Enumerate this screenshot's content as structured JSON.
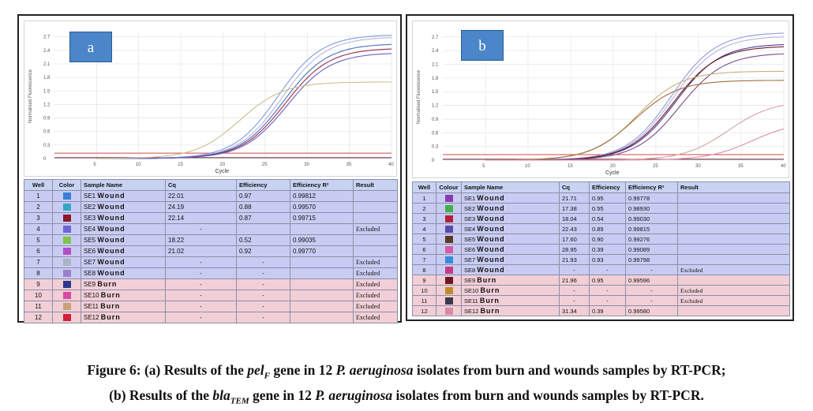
{
  "panel_a": {
    "label": "a",
    "axis": {
      "y_ticks": [
        "2.7",
        "2.4",
        "2.1",
        "1.8",
        "1.5",
        "1.2",
        "0.9",
        "0.6",
        "0.3",
        "0"
      ],
      "x_ticks": [
        "5",
        "10",
        "15",
        "20",
        "25",
        "30",
        "35",
        "40"
      ],
      "x_title": "Cycle",
      "y_title": "Normalised Fluorescence"
    },
    "headers": [
      "Well",
      "Color",
      "Sample Name",
      "Cq",
      "Efficiency",
      "Efficiency R²",
      "Result"
    ],
    "rows": [
      {
        "well": "1",
        "color": "#3a7fd9",
        "id": "SE1",
        "type": "Wound",
        "cq": "22.01",
        "eff": "0.97",
        "r2": "0.99812",
        "result": ""
      },
      {
        "well": "2",
        "color": "#35a7c9",
        "id": "SE2",
        "type": "Wound",
        "cq": "24.19",
        "eff": "0.88",
        "r2": "0.99570",
        "result": ""
      },
      {
        "well": "3",
        "color": "#8b1a2b",
        "id": "SE3",
        "type": "Wound",
        "cq": "22.14",
        "eff": "0.87",
        "r2": "0.99715",
        "result": ""
      },
      {
        "well": "4",
        "color": "#6b66d8",
        "id": "SE4",
        "type": "Wound",
        "cq": "-",
        "eff": "",
        "r2": "",
        "result": "Excluded"
      },
      {
        "well": "5",
        "color": "#7cc44a",
        "id": "SE5",
        "type": "Wound",
        "cq": "18.22",
        "eff": "0.52",
        "r2": "0.99035",
        "result": ""
      },
      {
        "well": "6",
        "color": "#b34fc4",
        "id": "SE6",
        "type": "Wound",
        "cq": "21.02",
        "eff": "0.92",
        "r2": "0.99770",
        "result": ""
      },
      {
        "well": "7",
        "color": "#a9b3c4",
        "id": "SE7",
        "type": "Wound",
        "cq": "-",
        "eff": "-",
        "r2": "",
        "result": "Excluded"
      },
      {
        "well": "8",
        "color": "#9b80c9",
        "id": "SE8",
        "type": "Wound",
        "cq": "-",
        "eff": "-",
        "r2": "",
        "result": "Excluded"
      },
      {
        "well": "9",
        "color": "#2a3a8c",
        "id": "SE9",
        "type": "Burn",
        "cq": "-",
        "eff": "-",
        "r2": "",
        "result": "Excluded"
      },
      {
        "well": "10",
        "color": "#d94aa0",
        "id": "SE10",
        "type": "Burn",
        "cq": "-",
        "eff": "-",
        "r2": "",
        "result": "Excluded"
      },
      {
        "well": "11",
        "color": "#c8a27a",
        "id": "SE11",
        "type": "Burn",
        "cq": "-",
        "eff": "-",
        "r2": "",
        "result": "Excluded"
      },
      {
        "well": "12",
        "color": "#d01f3a",
        "id": "SE12",
        "type": "Burn",
        "cq": "-",
        "eff": "-",
        "r2": "",
        "result": "Excluded"
      }
    ],
    "curves": [
      {
        "color": "#7f9fd8",
        "cq": 21.5,
        "max": 2.75
      },
      {
        "color": "#b7b5e6",
        "cq": 22.0,
        "max": 2.7
      },
      {
        "color": "#4a6fc0",
        "cq": 22.2,
        "max": 2.55
      },
      {
        "color": "#9a2e4a",
        "cq": 22.4,
        "max": 2.45
      },
      {
        "color": "#6a5ec8",
        "cq": 22.6,
        "max": 2.35
      },
      {
        "color": "#c9c08a",
        "cq": 17.0,
        "max": 1.7
      }
    ],
    "threshold": 0.12
  },
  "panel_b": {
    "label": "b",
    "axis": {
      "y_ticks": [
        "2.7",
        "2.4",
        "2.1",
        "1.8",
        "1.5",
        "1.2",
        "0.9",
        "0.6",
        "0.3",
        "0"
      ],
      "x_ticks": [
        "5",
        "10",
        "15",
        "20",
        "25",
        "30",
        "35",
        "40"
      ],
      "x_title": "Cycle",
      "y_title": "Normalised Fluorescence"
    },
    "headers": [
      "Well",
      "Colour",
      "Sample Name",
      "Cq",
      "Efficiency",
      "Efficiency R²",
      "Result"
    ],
    "rows": [
      {
        "well": "1",
        "color": "#8a3bb0",
        "id": "SE1",
        "type": "Wound",
        "cq": "21.71",
        "eff": "0.95",
        "r2": "0.99778",
        "result": ""
      },
      {
        "well": "2",
        "color": "#3fb04a",
        "id": "SE2",
        "type": "Wound",
        "cq": "17.38",
        "eff": "0.55",
        "r2": "0.98930",
        "result": ""
      },
      {
        "well": "3",
        "color": "#b0243a",
        "id": "SE3",
        "type": "Wound",
        "cq": "18.04",
        "eff": "0.54",
        "r2": "0.99030",
        "result": ""
      },
      {
        "well": "4",
        "color": "#5a4aa8",
        "id": "SE4",
        "type": "Wound",
        "cq": "22.43",
        "eff": "0.89",
        "r2": "0.99815",
        "result": ""
      },
      {
        "well": "5",
        "color": "#5a3a22",
        "id": "SE5",
        "type": "Wound",
        "cq": "17.60",
        "eff": "0.90",
        "r2": "0.99276",
        "result": ""
      },
      {
        "well": "6",
        "color": "#d25aa6",
        "id": "SE6",
        "type": "Wound",
        "cq": "28.95",
        "eff": "0.39",
        "r2": "0.99089",
        "result": ""
      },
      {
        "well": "7",
        "color": "#3a8ad6",
        "id": "SE7",
        "type": "Wound",
        "cq": "21.93",
        "eff": "0.93",
        "r2": "0.99798",
        "result": ""
      },
      {
        "well": "8",
        "color": "#c63a8a",
        "id": "SE8",
        "type": "Wound",
        "cq": "-",
        "eff": "-",
        "r2": "-",
        "result": "Excluded"
      },
      {
        "well": "9",
        "color": "#6a1a24",
        "id": "SE9",
        "type": "Burn",
        "cq": "21.96",
        "eff": "0.95",
        "r2": "0.99596",
        "result": ""
      },
      {
        "well": "10",
        "color": "#c08a2a",
        "id": "SE10",
        "type": "Burn",
        "cq": "-",
        "eff": "-",
        "r2": "-",
        "result": "Excluded"
      },
      {
        "well": "11",
        "color": "#3a3a4a",
        "id": "SE11",
        "type": "Burn",
        "cq": "-",
        "eff": "-",
        "r2": "-",
        "result": "Excluded"
      },
      {
        "well": "12",
        "color": "#d88aa6",
        "id": "SE12",
        "type": "Burn",
        "cq": "31.34",
        "eff": "0.39",
        "r2": "0.99580",
        "result": ""
      }
    ],
    "curves": [
      {
        "color": "#8f9ad8",
        "cq": 21.8,
        "max": 2.8
      },
      {
        "color": "#b5b0e0",
        "cq": 22.0,
        "max": 2.72
      },
      {
        "color": "#4a3a9a",
        "cq": 22.3,
        "max": 2.55
      },
      {
        "color": "#6a1a24",
        "cq": 22.0,
        "max": 2.5
      },
      {
        "color": "#7a4a8a",
        "cq": 22.8,
        "max": 2.35
      },
      {
        "color": "#c9b07a",
        "cq": 17.8,
        "max": 1.95
      },
      {
        "color": "#a07040",
        "cq": 17.4,
        "max": 1.75
      },
      {
        "color": "#d8a0a0",
        "cq": 28.5,
        "max": 1.3
      },
      {
        "color": "#e08aa8",
        "cq": 31.3,
        "max": 0.85
      }
    ],
    "threshold": 0.12
  },
  "caption": {
    "line1": {
      "figure": "Figure 6:",
      "part": "(a) Results of the",
      "gene": "pel",
      "gene_sub": "F",
      "mid": "gene in 12",
      "species": "P. aeruginosa",
      "rest": "isolates from burn and wounds samples by RT-PCR;"
    },
    "line2": {
      "part": "(b) Results of the",
      "gene": "bla",
      "gene_sub": "TEM",
      "mid": "gene in 12",
      "species": "P. aeruginosa",
      "rest": "isolates from burn and wounds samples by RT-PCR."
    }
  }
}
